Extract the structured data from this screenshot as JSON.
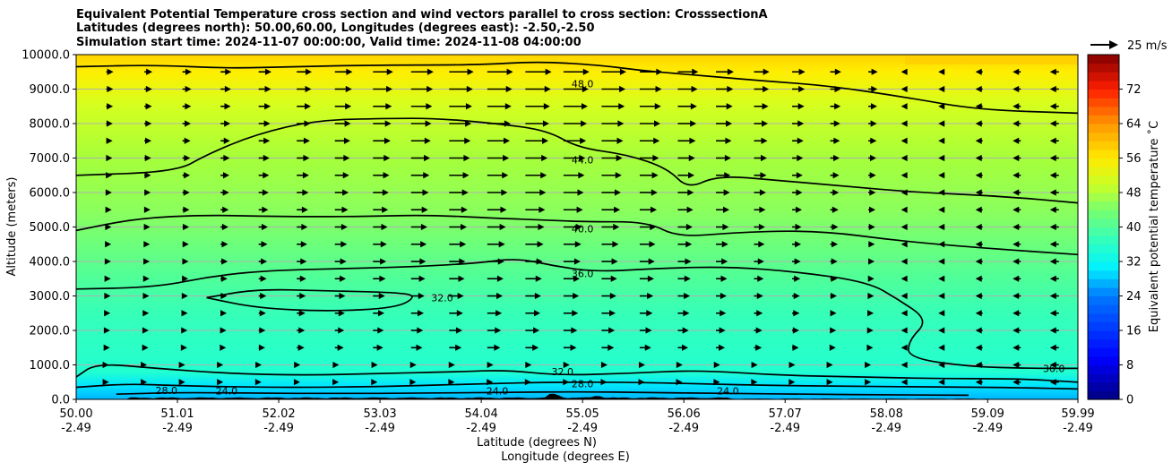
{
  "chart_data": {
    "type": "contour-cross-section",
    "title_lines": [
      "Equivalent Potential Temperature cross section and wind vectors parallel to cross section: CrosssectionA",
      "Latitudes (degrees north): 50.00,60.00, Longitudes (degrees east): -2.50,-2.50",
      "Simulation start time: 2024-11-07 00:00:00, Valid time: 2024-11-08 04:00:00"
    ],
    "ylabel": "Altitude (meters)",
    "xlabel_lat": "Latitude (degrees N)",
    "xlabel_lon": "Longitude (degrees E)",
    "ylim": [
      0,
      10000
    ],
    "xlim": [
      50.0,
      59.99
    ],
    "yticks": [
      0,
      1000,
      2000,
      3000,
      4000,
      5000,
      6000,
      7000,
      8000,
      9000,
      10000
    ],
    "ytick_labels": [
      "0.0",
      "1000.0",
      "2000.0",
      "3000.0",
      "4000.0",
      "5000.0",
      "6000.0",
      "7000.0",
      "8000.0",
      "9000.0",
      "10000.0"
    ],
    "xticks": [
      50.0,
      51.01,
      52.02,
      53.03,
      54.04,
      55.05,
      56.06,
      57.07,
      58.08,
      59.09,
      59.99
    ],
    "xtick_lat_labels": [
      "50.00",
      "51.01",
      "52.02",
      "53.03",
      "54.04",
      "55.05",
      "56.06",
      "57.07",
      "58.08",
      "59.09",
      "59.99"
    ],
    "xtick_lon_labels": [
      "-2.49",
      "-2.49",
      "-2.49",
      "-2.49",
      "-2.49",
      "-2.49",
      "-2.49",
      "-2.49",
      "-2.49",
      "-2.49",
      "-2.49"
    ],
    "colorbar": {
      "label": "Equivalent potential temperature ˚C",
      "range": [
        0,
        80
      ],
      "ticks": [
        0,
        8,
        16,
        24,
        32,
        40,
        48,
        56,
        64,
        72
      ],
      "tick_labels": [
        "0",
        "8",
        "16",
        "24",
        "32",
        "40",
        "48",
        "56",
        "64",
        "72"
      ]
    },
    "quiver_key": {
      "label": "25 m/s",
      "speed": 25
    },
    "contour_lines": [
      {
        "level": 48,
        "label": "48.0",
        "points": [
          [
            50.0,
            9650
          ],
          [
            50.8,
            9700
          ],
          [
            51.5,
            9600
          ],
          [
            52.2,
            9650
          ],
          [
            53.0,
            9700
          ],
          [
            54.0,
            9700
          ],
          [
            54.6,
            9800
          ],
          [
            55.2,
            9700
          ],
          [
            55.6,
            9550
          ],
          [
            56.0,
            9450
          ],
          [
            56.8,
            9250
          ],
          [
            57.5,
            9100
          ],
          [
            58.3,
            8750
          ],
          [
            59.0,
            8400
          ],
          [
            59.99,
            8300
          ]
        ]
      },
      {
        "level": 44,
        "label": "44.0",
        "points": [
          [
            50.0,
            6500
          ],
          [
            51.0,
            6600
          ],
          [
            51.3,
            7100
          ],
          [
            51.8,
            7700
          ],
          [
            52.4,
            8100
          ],
          [
            53.1,
            8150
          ],
          [
            53.6,
            8150
          ],
          [
            54.2,
            8000
          ],
          [
            54.7,
            7800
          ],
          [
            55.0,
            7300
          ],
          [
            55.5,
            7100
          ],
          [
            55.9,
            6700
          ],
          [
            56.1,
            6100
          ],
          [
            56.4,
            6500
          ],
          [
            57.0,
            6350
          ],
          [
            57.6,
            6200
          ],
          [
            58.4,
            6000
          ],
          [
            59.2,
            5900
          ],
          [
            59.99,
            5700
          ]
        ]
      },
      {
        "level": 40,
        "label": "40.0",
        "points": [
          [
            50.0,
            4900
          ],
          [
            50.6,
            5250
          ],
          [
            51.3,
            5350
          ],
          [
            52.0,
            5300
          ],
          [
            52.8,
            5300
          ],
          [
            53.5,
            5350
          ],
          [
            54.2,
            5250
          ],
          [
            54.7,
            5200
          ],
          [
            55.1,
            5150
          ],
          [
            55.7,
            5150
          ],
          [
            56.0,
            4700
          ],
          [
            56.6,
            4850
          ],
          [
            57.4,
            4900
          ],
          [
            58.2,
            4600
          ],
          [
            59.0,
            4400
          ],
          [
            59.99,
            4200
          ]
        ]
      },
      {
        "level": 36,
        "label": "36.0",
        "points": [
          [
            50.0,
            3200
          ],
          [
            50.8,
            3250
          ],
          [
            51.4,
            3600
          ],
          [
            52.0,
            3750
          ],
          [
            52.8,
            3800
          ],
          [
            53.4,
            3850
          ],
          [
            54.0,
            3950
          ],
          [
            54.4,
            4100
          ],
          [
            54.8,
            3850
          ],
          [
            55.2,
            3700
          ],
          [
            55.8,
            3800
          ],
          [
            56.5,
            3850
          ],
          [
            57.2,
            3700
          ],
          [
            57.9,
            3400
          ],
          [
            58.2,
            2900
          ],
          [
            58.5,
            2300
          ],
          [
            58.3,
            1700
          ],
          [
            58.3,
            1200
          ],
          [
            58.9,
            950
          ],
          [
            59.5,
            900
          ],
          [
            59.99,
            900
          ]
        ]
      },
      {
        "level": 32,
        "label": "32.0",
        "points": [
          [
            51.3,
            2950
          ],
          [
            51.8,
            3200
          ],
          [
            52.5,
            3150
          ],
          [
            53.2,
            3100
          ],
          [
            53.4,
            3000
          ],
          [
            53.2,
            2650
          ],
          [
            52.5,
            2550
          ],
          [
            51.8,
            2650
          ],
          [
            51.3,
            2950
          ]
        ]
      },
      {
        "level": 32,
        "label": "32.0",
        "points": [
          [
            50.0,
            650
          ],
          [
            50.2,
            1050
          ],
          [
            50.8,
            900
          ],
          [
            51.5,
            750
          ],
          [
            52.3,
            700
          ],
          [
            53.0,
            750
          ],
          [
            53.8,
            800
          ],
          [
            54.3,
            850
          ],
          [
            54.8,
            700
          ],
          [
            55.5,
            750
          ],
          [
            56.2,
            850
          ],
          [
            57.0,
            700
          ],
          [
            57.8,
            650
          ],
          [
            58.6,
            600
          ],
          [
            59.4,
            600
          ],
          [
            59.99,
            500
          ]
        ]
      },
      {
        "level": 28,
        "label": "28.0",
        "points": [
          [
            50.0,
            350
          ],
          [
            50.5,
            450
          ],
          [
            51.0,
            400
          ],
          [
            51.8,
            350
          ],
          [
            52.5,
            350
          ],
          [
            53.2,
            380
          ],
          [
            54.0,
            450
          ],
          [
            54.8,
            500
          ],
          [
            55.5,
            500
          ],
          [
            56.2,
            450
          ],
          [
            57.0,
            400
          ],
          [
            57.8,
            380
          ],
          [
            58.6,
            360
          ],
          [
            59.4,
            340
          ],
          [
            59.99,
            300
          ]
        ]
      },
      {
        "level": 24,
        "label": "24.0",
        "points": [
          [
            50.4,
            150
          ],
          [
            51.0,
            200
          ],
          [
            51.8,
            180
          ],
          [
            52.6,
            170
          ],
          [
            53.4,
            180
          ],
          [
            54.2,
            200
          ],
          [
            55.0,
            220
          ],
          [
            55.7,
            200
          ],
          [
            56.5,
            170
          ],
          [
            57.3,
            150
          ],
          [
            58.1,
            130
          ],
          [
            58.9,
            120
          ]
        ]
      }
    ],
    "contour_labels": [
      {
        "text": "48.0",
        "x": 55.05,
        "y": 9150
      },
      {
        "text": "44.0",
        "x": 55.05,
        "y": 6950
      },
      {
        "text": "40.0",
        "x": 55.05,
        "y": 4950
      },
      {
        "text": "36.0",
        "x": 55.05,
        "y": 3650
      },
      {
        "text": "32.0",
        "x": 53.65,
        "y": 2950
      },
      {
        "text": "32.0",
        "x": 54.85,
        "y": 800
      },
      {
        "text": "28.0",
        "x": 55.05,
        "y": 450
      },
      {
        "text": "28.0",
        "x": 50.9,
        "y": 260
      },
      {
        "text": "24.0",
        "x": 51.5,
        "y": 250
      },
      {
        "text": "24.0",
        "x": 54.2,
        "y": 250
      },
      {
        "text": "24.0",
        "x": 56.5,
        "y": 250
      },
      {
        "text": "36.0",
        "x": 59.75,
        "y": 900
      }
    ]
  }
}
